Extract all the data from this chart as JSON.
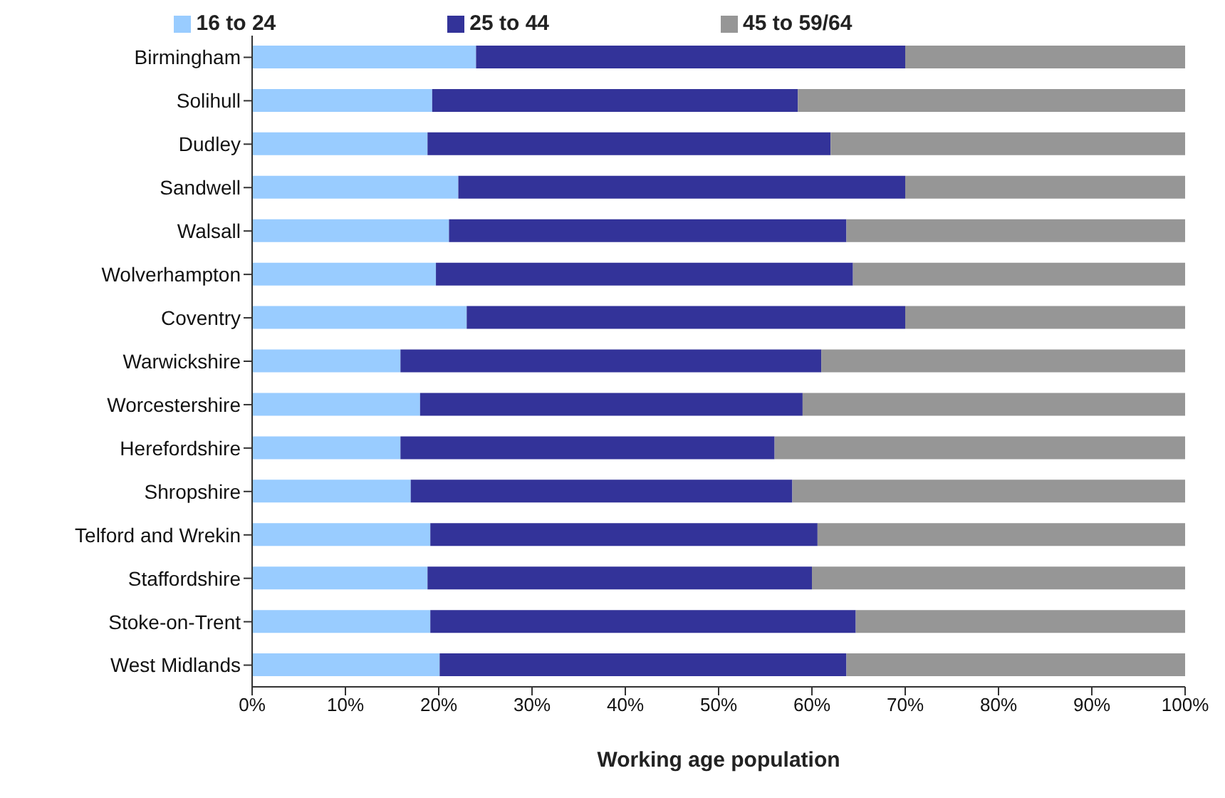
{
  "chart_data": {
    "type": "bar",
    "orientation": "horizontal",
    "stacked": true,
    "xlabel": "Working age population",
    "categories": [
      "Birmingham",
      "Solihull",
      "Dudley",
      "Sandwell",
      "Walsall",
      "Wolverhampton",
      "Coventry",
      "Warwickshire",
      "Worcestershire",
      "Herefordshire",
      "Shropshire",
      "Telford and Wrekin",
      "Staffordshire",
      "Stoke-on-Trent",
      "West Midlands"
    ],
    "series": [
      {
        "name": "16 to 24",
        "color": "#99ccff",
        "values": [
          24,
          19.3,
          18.8,
          22.1,
          21.1,
          19.7,
          23,
          15.9,
          18,
          15.9,
          17,
          19.1,
          18.8,
          19.1,
          20.1
        ]
      },
      {
        "name": "25 to 44",
        "color": "#333399",
        "values": [
          46,
          39.2,
          43.2,
          47.9,
          42.6,
          44.7,
          47,
          45.1,
          41,
          40.1,
          40.9,
          41.5,
          41.2,
          45.6,
          43.6
        ]
      },
      {
        "name": "45 to 59/64",
        "color": "#969696",
        "values": [
          30,
          41.5,
          38,
          30,
          36.3,
          35.6,
          30,
          39,
          41,
          44,
          42.1,
          39.4,
          40,
          35.3,
          36.3
        ]
      }
    ],
    "xlim": [
      0,
      100
    ],
    "xticks": [
      {
        "value": 0,
        "label": "0%"
      },
      {
        "value": 10,
        "label": "10%"
      },
      {
        "value": 20,
        "label": "20%"
      },
      {
        "value": 30,
        "label": "30%"
      },
      {
        "value": 40,
        "label": "40%"
      },
      {
        "value": 50,
        "label": "50%"
      },
      {
        "value": 60,
        "label": "60%"
      },
      {
        "value": 70,
        "label": "70%"
      },
      {
        "value": 80,
        "label": "80%"
      },
      {
        "value": 90,
        "label": "90%"
      },
      {
        "value": 100,
        "label": "100%"
      }
    ],
    "grid": false,
    "legend": "top"
  }
}
